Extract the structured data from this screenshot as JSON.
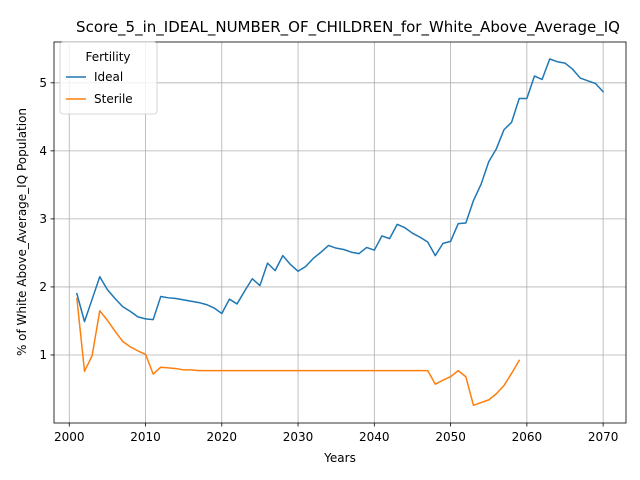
{
  "chart_data": {
    "type": "line",
    "title": "Score_5_in_IDEAL_NUMBER_OF_CHILDREN_for_White_Above_Average_IQ",
    "xlabel": "Years",
    "ylabel": "% of White Above_Average_IQ Population",
    "xlim": [
      1998,
      2073
    ],
    "ylim": [
      0.0,
      5.6
    ],
    "xticks": [
      2000,
      2010,
      2020,
      2030,
      2040,
      2050,
      2060,
      2070
    ],
    "yticks": [
      1,
      2,
      3,
      4,
      5
    ],
    "grid": true,
    "legend": {
      "title": "Fertility",
      "placement": "top-left"
    },
    "series": [
      {
        "name": "Ideal",
        "color": "#1f77b4",
        "x": [
          2001,
          2002,
          2003,
          2004,
          2005,
          2006,
          2007,
          2008,
          2009,
          2010,
          2011,
          2012,
          2013,
          2014,
          2015,
          2016,
          2017,
          2018,
          2019,
          2020,
          2021,
          2022,
          2023,
          2024,
          2025,
          2026,
          2027,
          2028,
          2029,
          2030,
          2031,
          2032,
          2033,
          2034,
          2035,
          2036,
          2037,
          2038,
          2039,
          2040,
          2041,
          2042,
          2043,
          2044,
          2045,
          2046,
          2047,
          2048,
          2049,
          2050,
          2051,
          2052,
          2053,
          2054,
          2055,
          2056,
          2057,
          2058,
          2059,
          2060,
          2061,
          2062,
          2063,
          2064,
          2065,
          2066,
          2067,
          2068,
          2069,
          2070
        ],
        "values": [
          1.9,
          1.49,
          1.82,
          2.15,
          1.96,
          1.83,
          1.71,
          1.64,
          1.56,
          1.53,
          1.52,
          1.86,
          1.84,
          1.83,
          1.81,
          1.79,
          1.77,
          1.74,
          1.69,
          1.61,
          1.82,
          1.75,
          1.94,
          2.12,
          2.02,
          2.35,
          2.24,
          2.46,
          2.33,
          2.23,
          2.3,
          2.42,
          2.51,
          2.61,
          2.57,
          2.55,
          2.51,
          2.49,
          2.58,
          2.54,
          2.75,
          2.71,
          2.92,
          2.87,
          2.79,
          2.73,
          2.66,
          2.46,
          2.64,
          2.67,
          2.93,
          2.94,
          3.27,
          3.51,
          3.84,
          4.03,
          4.31,
          4.42,
          4.77,
          4.77,
          5.1,
          5.05,
          5.35,
          5.31,
          5.29,
          5.2,
          5.07,
          5.03,
          4.99,
          4.87
        ]
      },
      {
        "name": "Sterile",
        "color": "#ff7f0e",
        "x": [
          2001,
          2002,
          2003,
          2004,
          2005,
          2006,
          2007,
          2008,
          2009,
          2010,
          2011,
          2012,
          2013,
          2014,
          2015,
          2016,
          2017,
          2018,
          2019,
          2020,
          2021,
          2022,
          2023,
          2024,
          2025,
          2026,
          2027,
          2028,
          2029,
          2030,
          2031,
          2032,
          2033,
          2034,
          2035,
          2036,
          2037,
          2038,
          2039,
          2040,
          2041,
          2042,
          2043,
          2044,
          2045,
          2046,
          2047,
          2048,
          2049,
          2050,
          2051,
          2052,
          2053,
          2054,
          2055,
          2056,
          2057,
          2058,
          2059
        ],
        "values": [
          1.83,
          0.76,
          0.99,
          1.65,
          1.51,
          1.35,
          1.2,
          1.12,
          1.06,
          1.01,
          0.72,
          0.82,
          0.81,
          0.8,
          0.78,
          0.78,
          0.77,
          0.77,
          0.77,
          0.77,
          0.77,
          0.77,
          0.77,
          0.77,
          0.77,
          0.77,
          0.77,
          0.77,
          0.77,
          0.77,
          0.77,
          0.77,
          0.77,
          0.77,
          0.77,
          0.77,
          0.77,
          0.77,
          0.77,
          0.77,
          0.77,
          0.77,
          0.77,
          0.77,
          0.77,
          0.77,
          0.77,
          0.57,
          0.63,
          0.68,
          0.77,
          0.68,
          0.26,
          0.3,
          0.34,
          0.43,
          0.55,
          0.73,
          0.92
        ]
      }
    ]
  }
}
